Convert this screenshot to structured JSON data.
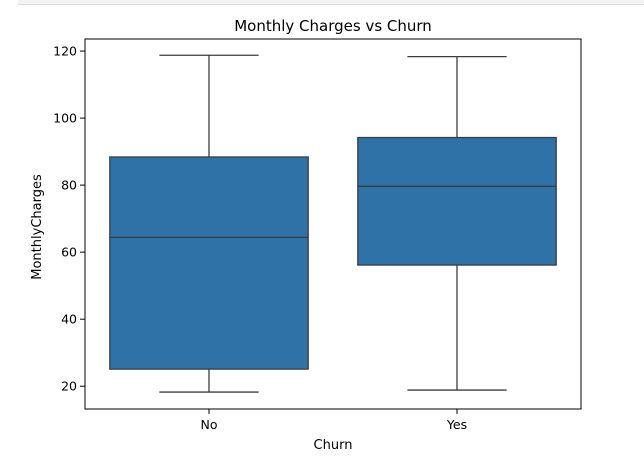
{
  "chart_data": {
    "type": "box",
    "title": "Monthly Charges vs Churn",
    "xlabel": "Churn",
    "ylabel": "MonthlyCharges",
    "categories": [
      "No",
      "Yes"
    ],
    "yticks": [
      20,
      40,
      60,
      80,
      100,
      120
    ],
    "ylim": [
      13.2,
      123.6
    ],
    "series": [
      {
        "category": "No",
        "min": 18.25,
        "q1": 25.1,
        "median": 64.4,
        "q3": 88.4,
        "max": 118.75
      },
      {
        "category": "Yes",
        "min": 18.85,
        "q1": 56.15,
        "median": 79.65,
        "q3": 94.2,
        "max": 118.35
      }
    ],
    "box_color": "#2e72a8",
    "line_color": "#3d3d3d",
    "grid": false,
    "legend": "none"
  }
}
